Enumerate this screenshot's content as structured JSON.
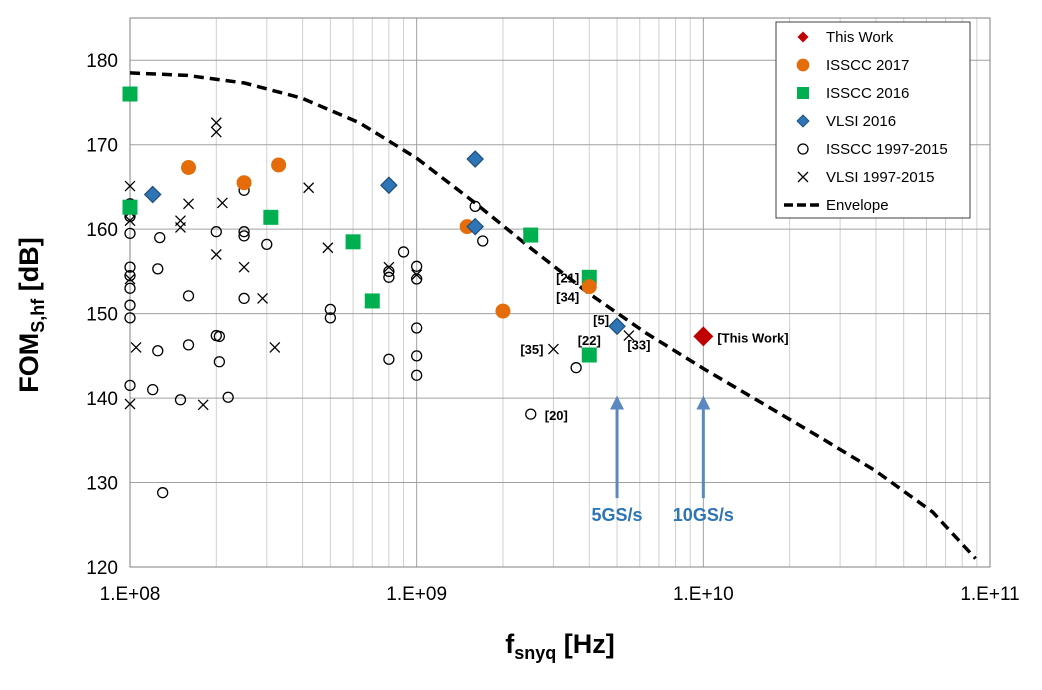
{
  "chart_data": {
    "type": "scatter",
    "x_scale": "log",
    "xlim": [
      100000000,
      100000000000
    ],
    "ylim": [
      120,
      185
    ],
    "x_ticks": [
      "1.E+08",
      "1.E+09",
      "1.E+10",
      "1.E+11"
    ],
    "y_ticks": [
      "120",
      "130",
      "140",
      "150",
      "160",
      "170",
      "180"
    ],
    "xlabel": {
      "main": "f",
      "sub": "snyq",
      "unit": " [Hz]"
    },
    "ylabel": {
      "main": "FOM",
      "sub": "S,hf",
      "unit": " [dB]"
    },
    "grid": true,
    "legend_position": "top-right",
    "colors": {
      "this_work": "#c00000",
      "issc_2017": "#e46c0a",
      "isscc_2016": "#00b050",
      "vlsi_2016": "#2e75b6",
      "arrow": "#5b88c0",
      "arrow_label": "#2e75b6"
    },
    "series": [
      {
        "name": "This Work",
        "marker": "diamond-red",
        "points": [
          [
            10000000000,
            147.3
          ]
        ]
      },
      {
        "name": "ISSCC 2017",
        "marker": "circle-orange",
        "points": [
          [
            160000000,
            167.3
          ],
          [
            250000000,
            165.5
          ],
          [
            330000000,
            167.6
          ],
          [
            1500000000,
            160.3
          ],
          [
            2000000000,
            150.3
          ],
          [
            4000000000,
            153.2
          ]
        ]
      },
      {
        "name": "ISSCC 2016",
        "marker": "square-green",
        "points": [
          [
            100000000,
            176
          ],
          [
            100000000,
            162.6
          ],
          [
            310000000,
            161.4
          ],
          [
            600000000,
            158.5
          ],
          [
            700000000,
            151.5
          ],
          [
            2500000000,
            159.3
          ],
          [
            4000000000,
            154.3
          ],
          [
            4000000000,
            145.1
          ]
        ]
      },
      {
        "name": "VLSI 2016",
        "marker": "diamond-blue",
        "points": [
          [
            120000000,
            164.1
          ],
          [
            800000000,
            165.2
          ],
          [
            1600000000,
            168.3
          ],
          [
            1600000000,
            160.3
          ],
          [
            5000000000,
            148.5
          ]
        ]
      },
      {
        "name": "ISSCC 1997-2015",
        "marker": "circle-open",
        "points": [
          [
            100000000,
            163
          ],
          [
            100000000,
            161.5
          ],
          [
            100000000,
            159.5
          ],
          [
            100000000,
            155.5
          ],
          [
            100000000,
            154.5
          ],
          [
            100000000,
            153
          ],
          [
            100000000,
            151
          ],
          [
            100000000,
            149.5
          ],
          [
            100000000,
            141.5
          ],
          [
            120000000,
            141
          ],
          [
            125000000,
            155.3
          ],
          [
            125000000,
            145.6
          ],
          [
            127000000,
            159
          ],
          [
            130000000,
            128.8
          ],
          [
            150000000,
            139.8
          ],
          [
            160000000,
            152.1
          ],
          [
            160000000,
            146.3
          ],
          [
            200000000,
            159.7
          ],
          [
            200000000,
            147.4
          ],
          [
            205000000,
            147.3
          ],
          [
            205000000,
            144.3
          ],
          [
            220000000,
            140.1
          ],
          [
            250000000,
            164.6
          ],
          [
            250000000,
            159.7
          ],
          [
            250000000,
            159.2
          ],
          [
            250000000,
            151.8
          ],
          [
            300000000,
            158.2
          ],
          [
            500000000,
            150.5
          ],
          [
            500000000,
            149.5
          ],
          [
            800000000,
            155
          ],
          [
            800000000,
            154.3
          ],
          [
            800000000,
            144.6
          ],
          [
            900000000,
            157.3
          ],
          [
            1000000000,
            155.6
          ],
          [
            1000000000,
            154.1
          ],
          [
            1000000000,
            148.3
          ],
          [
            1000000000,
            145
          ],
          [
            1000000000,
            142.7
          ],
          [
            1600000000,
            162.7
          ],
          [
            1700000000,
            158.6
          ],
          [
            2500000000,
            138.1
          ],
          [
            3600000000,
            143.6
          ]
        ]
      },
      {
        "name": "VLSI 1997-2015",
        "marker": "cross",
        "points": [
          [
            100000000,
            165.1
          ],
          [
            100000000,
            162
          ],
          [
            100000000,
            161
          ],
          [
            100000000,
            154.1
          ],
          [
            100000000,
            139.3
          ],
          [
            105000000,
            146
          ],
          [
            150000000,
            160.2
          ],
          [
            150000000,
            161
          ],
          [
            160000000,
            163
          ],
          [
            180000000,
            139.2
          ],
          [
            200000000,
            172.6
          ],
          [
            200000000,
            171.5
          ],
          [
            200000000,
            157
          ],
          [
            210000000,
            163.1
          ],
          [
            250000000,
            155.5
          ],
          [
            290000000,
            151.8
          ],
          [
            320000000,
            146
          ],
          [
            420000000,
            164.9
          ],
          [
            490000000,
            157.8
          ],
          [
            800000000,
            155.5
          ],
          [
            1000000000,
            154.6
          ],
          [
            3000000000,
            145.8
          ],
          [
            5500000000,
            147.4
          ]
        ]
      }
    ],
    "envelope": {
      "name": "Envelope",
      "points": [
        [
          100000000,
          178.5
        ],
        [
          158000000,
          178.2
        ],
        [
          251000000,
          177.3
        ],
        [
          398000000,
          175.5
        ],
        [
          631000000,
          172.6
        ],
        [
          1000000000,
          168.4
        ],
        [
          1585000000,
          163.2
        ],
        [
          2512000000,
          157.7
        ],
        [
          3981000000,
          152.4
        ],
        [
          6310000000,
          147.7
        ],
        [
          10000000000,
          143.5
        ],
        [
          15850000000,
          139.5
        ],
        [
          25120000000,
          135.5
        ],
        [
          39810000000,
          131.4
        ],
        [
          63100000000,
          126.5
        ],
        [
          89100000000,
          121
        ]
      ]
    },
    "annotations": [
      {
        "text": "[This Work]",
        "x": 10000000000,
        "y": 147.3,
        "anchor": "right",
        "color": "#c00000",
        "size": "large"
      },
      {
        "text": "[21]",
        "x": 4000000000,
        "y": 154.3,
        "anchor": "left"
      },
      {
        "text": "[34]",
        "x": 4000000000,
        "y": 153.2,
        "anchor": "left-below"
      },
      {
        "text": "[5]",
        "x": 5000000000,
        "y": 148.5,
        "anchor": "left-above"
      },
      {
        "text": "[22]",
        "x": 4000000000,
        "y": 145.1,
        "anchor": "above"
      },
      {
        "text": "[33]",
        "x": 5500000000,
        "y": 147.4,
        "anchor": "below"
      },
      {
        "text": "[35]",
        "x": 3000000000,
        "y": 145.8,
        "anchor": "left"
      },
      {
        "text": "[20]",
        "x": 2500000000,
        "y": 138.1,
        "anchor": "right"
      }
    ],
    "arrows": [
      {
        "label": "5GS/s",
        "x": 5000000000,
        "from_y": 126.5,
        "to_y": 140.3
      },
      {
        "label": "10GS/s",
        "x": 10000000000,
        "from_y": 126.5,
        "to_y": 140.3
      }
    ]
  }
}
